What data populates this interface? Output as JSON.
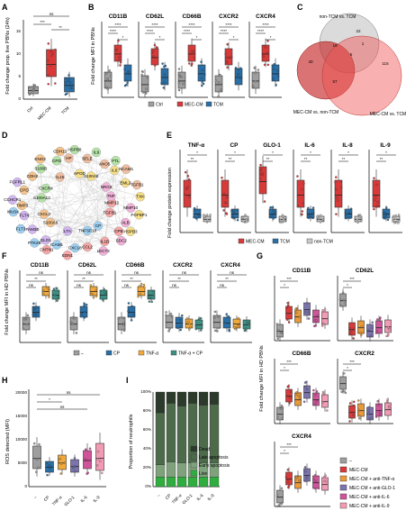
{
  "colors": {
    "ctrl": "#9e9e9e",
    "mec": "#d83a3a",
    "tcm": "#2a6fa6",
    "nontcm": "#c9c9c9",
    "cp": "#2a6fa6",
    "tnf": "#f2a93b",
    "tnfcp": "#3d8f83",
    "anti_tnf": "#e99a3b",
    "anti_glo": "#7b74b0",
    "anti_il6": "#d0549a",
    "anti_il9": "#f29bb4",
    "network_edge": "#b9b9b9"
  },
  "panelA": {
    "label": "A",
    "ylabel": "Fold change prop. live PBNs (24h)",
    "yticks": [
      "0",
      "5",
      "10",
      "15"
    ],
    "categories": [
      "Ctrl",
      "MEC-CM",
      "TCM"
    ],
    "sig": [
      "ns",
      "***",
      "**"
    ]
  },
  "panelB": {
    "label": "B",
    "ylabel": "Fold change MFI in PBNs",
    "titles": [
      "CD11B",
      "CD62L",
      "CD66B",
      "CXCR2",
      "CXCR4"
    ],
    "legend": [
      "Ctrl",
      "MEC-CM",
      "TCM"
    ]
  },
  "panelC": {
    "label": "C",
    "sets": [
      "non-TCM vs. TCM",
      "MEC-CM vs. non-TCM",
      "MEC-CM vs. TCM"
    ],
    "numbers": [
      "22",
      "19",
      "5",
      "40",
      "57",
      "115",
      "1"
    ]
  },
  "panelD": {
    "label": "D",
    "nodes": [
      "MMP12",
      "S100A9",
      "APOD",
      "CP",
      "S100A12",
      "NRG3",
      "LTA",
      "IL15",
      "TGFB1",
      "CXCL2",
      "S100A8",
      "TNFSF18",
      "CXCR4",
      "TNF",
      "GLO1",
      "HP",
      "CPE",
      "TIMP3",
      "IL6",
      "CXCL8",
      "S100B",
      "MMP10",
      "FAM3B",
      "SELE",
      "IL1B",
      "CPD",
      "EML2",
      "ICAM1",
      "CPD",
      "ALB",
      "FLT4",
      "ANO5",
      "CCL2",
      "CDH2",
      "TXK",
      "PTK2B",
      "HSPB8",
      "SDC2",
      "CCHCR1",
      "NCAM1",
      "EDN1",
      "ENO2",
      "FGFBP1",
      "FLT3",
      "IL9",
      "LECT2",
      "FGFRL1",
      "TGFB1",
      "CNTN1",
      "CDH13",
      "HSPB3",
      "MUSK",
      "FTL"
    ]
  },
  "panelE": {
    "label": "E",
    "ylabel": "Fold change protein expression",
    "titles": [
      "TNF-α",
      "CP",
      "GLO-1",
      "IL-6",
      "IL-8",
      "IL-9"
    ],
    "legend": [
      "MEC-CM",
      "TCM",
      "non-TCM"
    ]
  },
  "panelF": {
    "label": "F",
    "ylabel": "Fold change MFI in HD PBNs",
    "titles": [
      "CD11B",
      "CD62L",
      "CD66B",
      "CXCR2",
      "CXCR4"
    ],
    "legend": [
      "–",
      "CP",
      "TNF-α",
      "TNF-α + CP"
    ]
  },
  "panelG": {
    "label": "G",
    "ylabel": "Fold change MFI in HD PBNs",
    "titles": [
      "CD11B",
      "CD62L",
      "CD66B",
      "CXCR2",
      "CXCR4"
    ],
    "legend": [
      "–",
      "MEC-CM",
      "MEC-CM + anti-TNF-α",
      "MEC-CM + anti-GLO-1",
      "MEC-CM + anti-IL-6",
      "MEC-CM + anti-IL-9"
    ]
  },
  "panelH": {
    "label": "H",
    "ylabel": "ROS detected (MFI)",
    "categories": [
      "–",
      "CP",
      "TNF-α",
      "GLO-1",
      "IL-6",
      "IL-9"
    ],
    "yticks": [
      "0",
      "5000",
      "10000",
      "15000",
      "20000"
    ],
    "sig": [
      "ns",
      "*",
      "ns"
    ]
  },
  "panelI": {
    "label": "I",
    "ylabel": "Proportion of neutrophils",
    "yticks": [
      "0%",
      "20%",
      "40%",
      "60%",
      "80%",
      "100%"
    ],
    "categories": [
      "–",
      "CP",
      "TNF-α",
      "GLO-1",
      "IL-6",
      "IL-9"
    ],
    "legend": [
      "Dead",
      "Late apoptosis",
      "Early apoptosis",
      "Live"
    ],
    "legend_colors": [
      "#2c3a2c",
      "#4d6a4b",
      "#7fa17c",
      "#2fae3f"
    ]
  }
}
